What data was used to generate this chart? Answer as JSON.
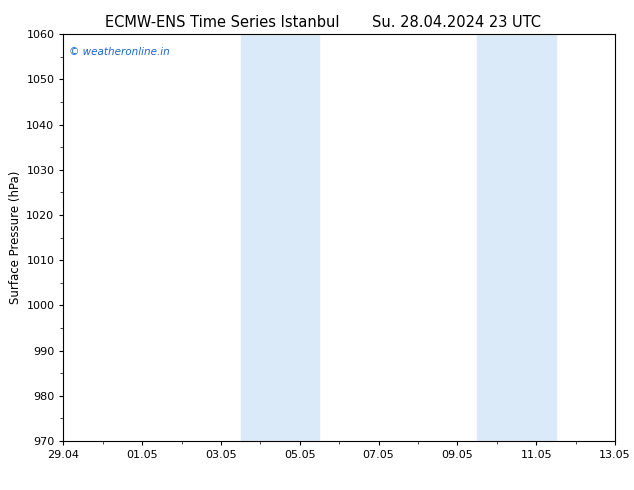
{
  "title_left": "ECMW-ENS Time Series Istanbul",
  "title_right": "Su. 28.04.2024 23 UTC",
  "ylabel": "Surface Pressure (hPa)",
  "ylim": [
    970,
    1060
  ],
  "yticks": [
    970,
    980,
    990,
    1000,
    1010,
    1020,
    1030,
    1040,
    1050,
    1060
  ],
  "xlim_start": 0,
  "xlim_end": 14,
  "xtick_positions": [
    0,
    2,
    4,
    6,
    8,
    10,
    12,
    14
  ],
  "xtick_labels": [
    "29.04",
    "01.05",
    "03.05",
    "05.05",
    "07.05",
    "09.05",
    "11.05",
    "13.05"
  ],
  "shaded_bands": [
    {
      "xmin": 4.5,
      "xmax": 6.5
    },
    {
      "xmin": 10.5,
      "xmax": 12.5
    }
  ],
  "band_color": "#daeaf8",
  "band_alpha": 1.0,
  "background_color": "#ffffff",
  "plot_bg_color": "#ffffff",
  "watermark": "© weatheronline.in",
  "watermark_color": "#1a66cc",
  "title_fontsize": 10.5,
  "axis_label_fontsize": 8.5,
  "tick_fontsize": 8,
  "watermark_fontsize": 7.5
}
